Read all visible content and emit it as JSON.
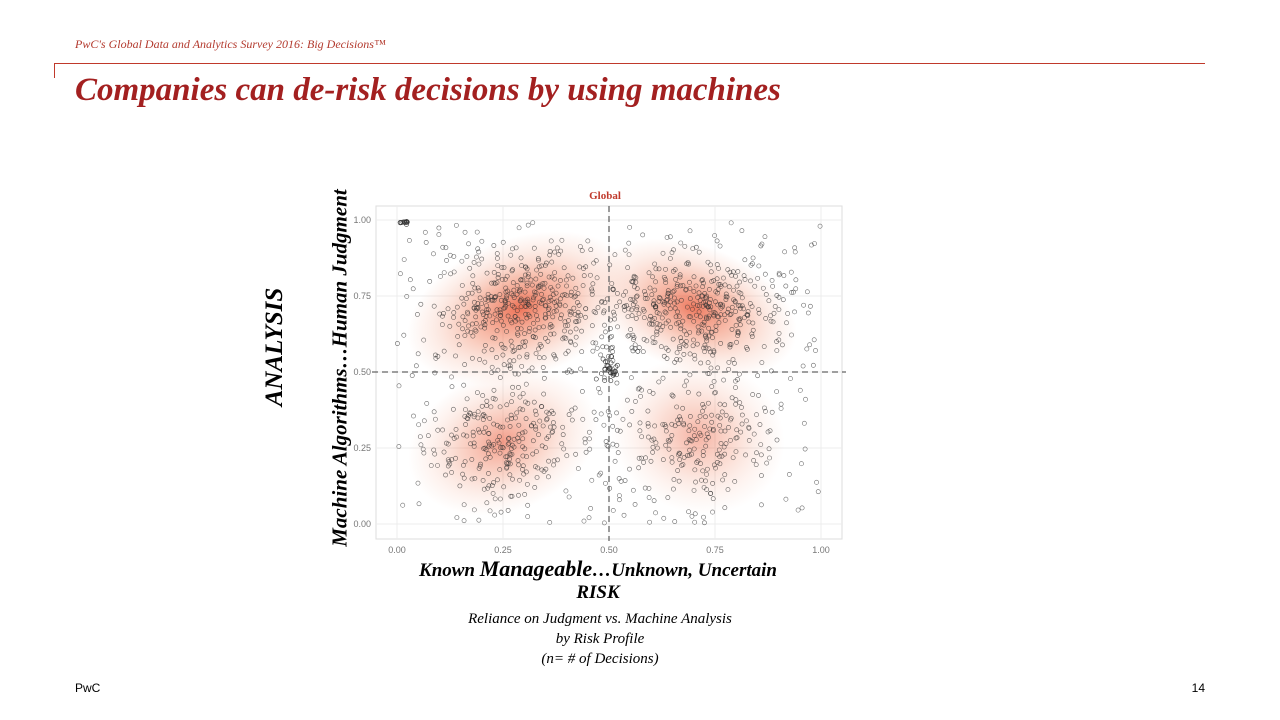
{
  "header": {
    "survey": "PwC's Global Data and Analytics Survey 2016: Big Decisions™",
    "title": "Companies can de-risk decisions by using machines"
  },
  "axis_labels": {
    "y_outer": "ANALYSIS",
    "y_inner": "Machine Algorithms…Human Judgment",
    "x_line1_a": "Known ",
    "x_line1_b": "Manageable",
    "x_line1_c": "…Unknown, Uncertain",
    "x_line2": "RISK"
  },
  "caption": {
    "line1": "Reliance on Judgment vs. Machine Analysis",
    "line2": "by Risk Profile",
    "line3": "(n= # of Decisions)"
  },
  "footer": {
    "left": "PwC",
    "right": "14"
  },
  "colors": {
    "accent": "#a32020",
    "density": "#e8431e"
  },
  "chart_data": {
    "type": "scatter",
    "title": "Global",
    "xlabel": "",
    "ylabel": "",
    "xlim": [
      0,
      1
    ],
    "ylim": [
      0,
      1
    ],
    "x_ticks": [
      "0.00",
      "0.25",
      "0.50",
      "0.75",
      "1.00"
    ],
    "y_ticks": [
      "0.00",
      "0.25",
      "0.50",
      "0.75",
      "1.00"
    ],
    "reference_lines": {
      "x": 0.5,
      "y": 0.5
    },
    "grid": true,
    "density_clusters": [
      {
        "cx": 0.29,
        "cy": 0.71,
        "sx": 0.12,
        "sy": 0.1,
        "weight": 1.0
      },
      {
        "cx": 0.7,
        "cy": 0.71,
        "sx": 0.11,
        "sy": 0.09,
        "weight": 0.95
      },
      {
        "cx": 0.25,
        "cy": 0.27,
        "sx": 0.1,
        "sy": 0.1,
        "weight": 0.7
      },
      {
        "cx": 0.71,
        "cy": 0.29,
        "sx": 0.09,
        "sy": 0.11,
        "weight": 0.55
      }
    ]
  }
}
